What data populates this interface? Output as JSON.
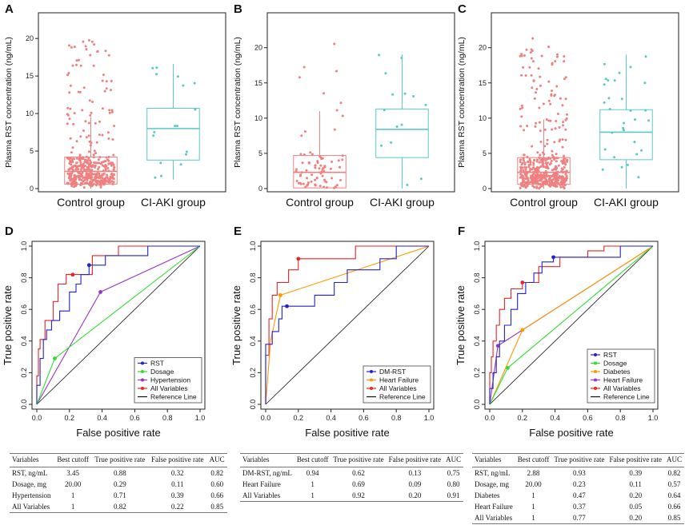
{
  "chart_data": [
    {
      "panel": "A",
      "type": "boxplot",
      "ylabel": "Plasma RST concentration (ng/mL)",
      "ylim": [
        0,
        23
      ],
      "yticks": [
        0,
        5,
        10,
        15,
        20
      ],
      "categories": [
        "Control group",
        "CI-AKI group"
      ],
      "boxes": [
        {
          "q1": 0.6,
          "median": 2.3,
          "q3": 4.2,
          "whisker_low": 0,
          "whisker_high": 9.5,
          "color": "#f08080",
          "n_points": 420
        },
        {
          "q1": 3.8,
          "median": 8.0,
          "q3": 10.7,
          "whisker_low": 1.2,
          "whisker_high": 16.6,
          "color": "#5bc8c8",
          "n_points": 17
        }
      ]
    },
    {
      "panel": "B",
      "type": "boxplot",
      "ylabel": "Plasma RST concentration (ng/mL)",
      "ylim": [
        0,
        24.5
      ],
      "yticks": [
        0,
        5,
        10,
        15,
        20
      ],
      "categories": [
        "Control group",
        "CI-AKI group"
      ],
      "boxes": [
        {
          "q1": 0.1,
          "median": 2.3,
          "q3": 4.7,
          "whisker_low": 0,
          "whisker_high": 11.0,
          "color": "#f08080",
          "n_points": 80
        },
        {
          "q1": 4.4,
          "median": 8.4,
          "q3": 11.3,
          "whisker_low": 0,
          "whisker_high": 19.0,
          "color": "#5bc8c8",
          "n_points": 14
        }
      ]
    },
    {
      "panel": "C",
      "type": "boxplot",
      "ylabel": "Plasma RST concentration (ng/mL)",
      "ylim": [
        0,
        24.5
      ],
      "yticks": [
        0,
        5,
        10,
        15,
        20
      ],
      "categories": [
        "Control group",
        "CI-AKI group"
      ],
      "boxes": [
        {
          "q1": 0.6,
          "median": 2.3,
          "q3": 4.4,
          "whisker_low": 0,
          "whisker_high": 9.8,
          "color": "#f08080",
          "n_points": 480
        },
        {
          "q1": 4.1,
          "median": 8.0,
          "q3": 11.2,
          "whisker_low": 0,
          "whisker_high": 19.0,
          "color": "#5bc8c8",
          "n_points": 30
        }
      ]
    },
    {
      "panel": "D",
      "type": "roc",
      "xlabel": "False positive rate",
      "ylabel": "True positive rate",
      "ticks": [
        0.0,
        0.2,
        0.4,
        0.6,
        0.8,
        1.0
      ],
      "tick_labels": [
        "0.0",
        "0.2",
        "0.4",
        "0.6",
        "0.8",
        "1.0"
      ],
      "series": [
        {
          "name": "RST",
          "color": "#2222cc",
          "marker": [
            0.32,
            0.88
          ],
          "points": [
            [
              0,
              0
            ],
            [
              0,
              0.12
            ],
            [
              0.02,
              0.12
            ],
            [
              0.02,
              0.29
            ],
            [
              0.04,
              0.29
            ],
            [
              0.04,
              0.41
            ],
            [
              0.06,
              0.41
            ],
            [
              0.06,
              0.47
            ],
            [
              0.09,
              0.47
            ],
            [
              0.09,
              0.53
            ],
            [
              0.14,
              0.53
            ],
            [
              0.14,
              0.59
            ],
            [
              0.2,
              0.59
            ],
            [
              0.2,
              0.71
            ],
            [
              0.24,
              0.71
            ],
            [
              0.24,
              0.76
            ],
            [
              0.27,
              0.76
            ],
            [
              0.27,
              0.82
            ],
            [
              0.32,
              0.82
            ],
            [
              0.32,
              0.88
            ],
            [
              0.42,
              0.88
            ],
            [
              0.42,
              0.94
            ],
            [
              0.68,
              0.94
            ],
            [
              0.68,
              1
            ],
            [
              1,
              1
            ]
          ]
        },
        {
          "name": "Dosage",
          "color": "#33dd33",
          "marker": [
            0.11,
            0.29
          ],
          "points": [
            [
              0,
              0
            ],
            [
              0.11,
              0.29
            ],
            [
              1,
              1
            ]
          ]
        },
        {
          "name": "Hypertension",
          "color": "#9933cc",
          "marker": [
            0.39,
            0.71
          ],
          "points": [
            [
              0,
              0
            ],
            [
              0.39,
              0.71
            ],
            [
              1,
              1
            ]
          ]
        },
        {
          "name": "All Variables",
          "color": "#ee2222",
          "marker": [
            0.22,
            0.82
          ],
          "points": [
            [
              0,
              0
            ],
            [
              0,
              0.18
            ],
            [
              0.01,
              0.18
            ],
            [
              0.01,
              0.35
            ],
            [
              0.02,
              0.35
            ],
            [
              0.02,
              0.41
            ],
            [
              0.05,
              0.41
            ],
            [
              0.05,
              0.53
            ],
            [
              0.1,
              0.53
            ],
            [
              0.1,
              0.65
            ],
            [
              0.13,
              0.65
            ],
            [
              0.13,
              0.76
            ],
            [
              0.18,
              0.76
            ],
            [
              0.18,
              0.82
            ],
            [
              0.34,
              0.82
            ],
            [
              0.34,
              0.94
            ],
            [
              0.5,
              0.94
            ],
            [
              0.5,
              1
            ],
            [
              1,
              1
            ]
          ]
        },
        {
          "name": "Reference Line",
          "color": "#111111",
          "marker": null,
          "points": [
            [
              0,
              0
            ],
            [
              1,
              1
            ]
          ]
        }
      ]
    },
    {
      "panel": "E",
      "type": "roc",
      "xlabel": "False positive rate",
      "ylabel": "True positive rate",
      "ticks": [
        0.0,
        0.2,
        0.4,
        0.6,
        0.8,
        1.0
      ],
      "tick_labels": [
        "0.0",
        "0.2",
        "0.4",
        "0.6",
        "0.8",
        "1.0"
      ],
      "series": [
        {
          "name": "DM-RST",
          "color": "#2222cc",
          "marker": [
            0.13,
            0.62
          ],
          "points": [
            [
              0,
              0
            ],
            [
              0,
              0.38
            ],
            [
              0.04,
              0.38
            ],
            [
              0.04,
              0.46
            ],
            [
              0.08,
              0.46
            ],
            [
              0.08,
              0.54
            ],
            [
              0.1,
              0.54
            ],
            [
              0.1,
              0.62
            ],
            [
              0.3,
              0.62
            ],
            [
              0.3,
              0.69
            ],
            [
              0.42,
              0.69
            ],
            [
              0.42,
              0.77
            ],
            [
              0.5,
              0.77
            ],
            [
              0.5,
              0.85
            ],
            [
              0.7,
              0.85
            ],
            [
              0.7,
              0.92
            ],
            [
              0.8,
              0.92
            ],
            [
              0.8,
              1
            ],
            [
              1,
              1
            ]
          ]
        },
        {
          "name": "Heart Failure",
          "color": "#ff9900",
          "marker": [
            0.09,
            0.69
          ],
          "points": [
            [
              0,
              0
            ],
            [
              0.03,
              0.4
            ],
            [
              0.09,
              0.69
            ],
            [
              1,
              1
            ]
          ]
        },
        {
          "name": "All Variables",
          "color": "#ee2222",
          "marker": [
            0.2,
            0.92
          ],
          "points": [
            [
              0,
              0
            ],
            [
              0,
              0.31
            ],
            [
              0.02,
              0.31
            ],
            [
              0.02,
              0.54
            ],
            [
              0.04,
              0.54
            ],
            [
              0.04,
              0.69
            ],
            [
              0.07,
              0.69
            ],
            [
              0.07,
              0.77
            ],
            [
              0.14,
              0.77
            ],
            [
              0.14,
              0.85
            ],
            [
              0.2,
              0.85
            ],
            [
              0.2,
              0.92
            ],
            [
              0.55,
              0.92
            ],
            [
              0.55,
              1
            ],
            [
              1,
              1
            ]
          ]
        },
        {
          "name": "Reference Line",
          "color": "#111111",
          "marker": null,
          "points": [
            [
              0,
              0
            ],
            [
              1,
              1
            ]
          ]
        }
      ]
    },
    {
      "panel": "F",
      "type": "roc",
      "xlabel": "False positive rate",
      "ylabel": "True positive rate",
      "ticks": [
        0.0,
        0.2,
        0.4,
        0.6,
        0.8,
        1.0
      ],
      "tick_labels": [
        "0.0",
        "0.2",
        "0.4",
        "0.6",
        "0.8",
        "1.0"
      ],
      "series": [
        {
          "name": "RST",
          "color": "#2222cc",
          "marker": [
            0.39,
            0.93
          ],
          "points": [
            [
              0,
              0
            ],
            [
              0,
              0.1
            ],
            [
              0.02,
              0.1
            ],
            [
              0.02,
              0.2
            ],
            [
              0.04,
              0.2
            ],
            [
              0.04,
              0.3
            ],
            [
              0.06,
              0.3
            ],
            [
              0.06,
              0.4
            ],
            [
              0.09,
              0.4
            ],
            [
              0.09,
              0.5
            ],
            [
              0.13,
              0.5
            ],
            [
              0.13,
              0.6
            ],
            [
              0.17,
              0.6
            ],
            [
              0.17,
              0.7
            ],
            [
              0.22,
              0.7
            ],
            [
              0.22,
              0.77
            ],
            [
              0.27,
              0.77
            ],
            [
              0.27,
              0.83
            ],
            [
              0.32,
              0.83
            ],
            [
              0.32,
              0.9
            ],
            [
              0.39,
              0.9
            ],
            [
              0.39,
              0.93
            ],
            [
              0.8,
              0.93
            ],
            [
              0.8,
              1
            ],
            [
              1,
              1
            ]
          ]
        },
        {
          "name": "Dosage",
          "color": "#33dd33",
          "marker": [
            0.11,
            0.23
          ],
          "points": [
            [
              0,
              0
            ],
            [
              0.11,
              0.23
            ],
            [
              1,
              1
            ]
          ]
        },
        {
          "name": "Diabetes",
          "color": "#ff9900",
          "marker": [
            0.2,
            0.47
          ],
          "points": [
            [
              0,
              0
            ],
            [
              0.2,
              0.47
            ],
            [
              1,
              1
            ]
          ]
        },
        {
          "name": "Heart Failure",
          "color": "#9933cc",
          "marker": [
            0.05,
            0.37
          ],
          "points": [
            [
              0,
              0
            ],
            [
              0.05,
              0.37
            ],
            [
              1,
              1
            ]
          ]
        },
        {
          "name": "All Variables",
          "color": "#ee2222",
          "marker": [
            0.2,
            0.77
          ],
          "points": [
            [
              0,
              0
            ],
            [
              0,
              0.2
            ],
            [
              0.01,
              0.2
            ],
            [
              0.01,
              0.3
            ],
            [
              0.02,
              0.3
            ],
            [
              0.02,
              0.4
            ],
            [
              0.04,
              0.4
            ],
            [
              0.04,
              0.5
            ],
            [
              0.06,
              0.5
            ],
            [
              0.06,
              0.6
            ],
            [
              0.09,
              0.6
            ],
            [
              0.09,
              0.67
            ],
            [
              0.13,
              0.67
            ],
            [
              0.13,
              0.73
            ],
            [
              0.2,
              0.73
            ],
            [
              0.2,
              0.77
            ],
            [
              0.3,
              0.77
            ],
            [
              0.3,
              0.87
            ],
            [
              0.43,
              0.87
            ],
            [
              0.43,
              0.93
            ],
            [
              0.6,
              0.93
            ],
            [
              0.6,
              0.97
            ],
            [
              0.7,
              0.97
            ],
            [
              0.7,
              1
            ],
            [
              1,
              1
            ]
          ]
        },
        {
          "name": "Reference Line",
          "color": "#111111",
          "marker": null,
          "points": [
            [
              0,
              0
            ],
            [
              1,
              1
            ]
          ]
        }
      ]
    }
  ],
  "tables": {
    "D": {
      "headers": [
        "Variables",
        "Best cutoff",
        "True positive rate",
        "False positive rate",
        "AUC"
      ],
      "rows": [
        [
          "RST, ng/mL",
          "3.45",
          "0.88",
          "0.32",
          "0.82"
        ],
        [
          "Dosage, mg",
          "20.00",
          "0.29",
          "0.11",
          "0.60"
        ],
        [
          "Hypertension",
          "1",
          "0.71",
          "0.39",
          "0.66"
        ],
        [
          "All Variables",
          "1",
          "0.82",
          "0.22",
          "0.85"
        ]
      ]
    },
    "E": {
      "headers": [
        "Variables",
        "Best cutoff",
        "True positive rate",
        "False positive rate",
        "AUC"
      ],
      "rows": [
        [
          "DM-RST, ng/mL",
          "0.94",
          "0.62",
          "0.13",
          "0.75"
        ],
        [
          "Heart Failure",
          "1",
          "0.69",
          "0.09",
          "0.80"
        ],
        [
          "All Variables",
          "1",
          "0.92",
          "0.20",
          "0.91"
        ]
      ]
    },
    "F": {
      "headers": [
        "Variables",
        "Best cutoff",
        "True positive rate",
        "False positive rate",
        "AUC"
      ],
      "rows": [
        [
          "RST, ng/mL",
          "2.88",
          "0.93",
          "0.39",
          "0.82"
        ],
        [
          "Dosage, mg",
          "20.00",
          "0.23",
          "0.11",
          "0.57"
        ],
        [
          "Diabetes",
          "1",
          "0.47",
          "0.20",
          "0.64"
        ],
        [
          "Heart Failure",
          "1",
          "0.37",
          "0.05",
          "0.66"
        ],
        [
          "All Variables",
          "1",
          "0.77",
          "0.20",
          "0.85"
        ]
      ]
    }
  }
}
